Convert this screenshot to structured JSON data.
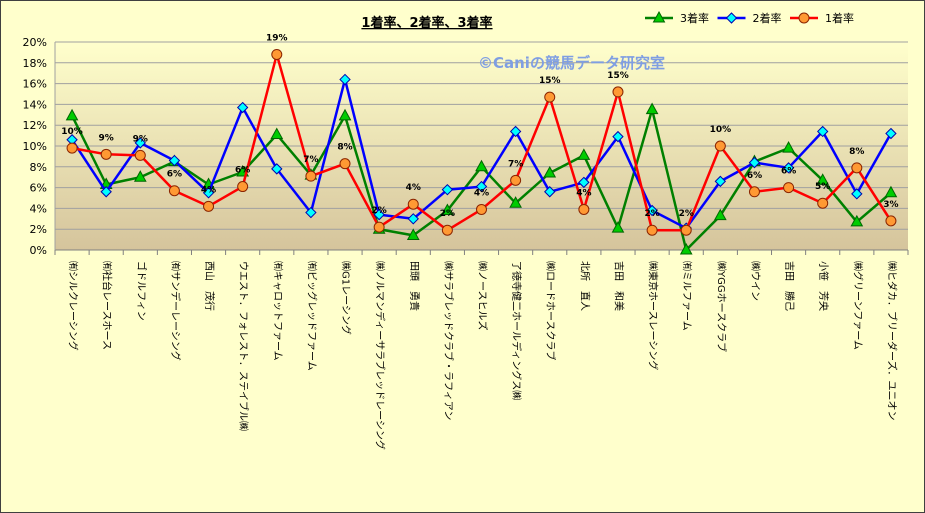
{
  "chart_data": {
    "type": "line",
    "title": "1着率、2着率、3着率",
    "watermark": "©Caniの競馬データ研究室",
    "ylim": [
      0,
      20
    ],
    "yticks": [
      {
        "value": 0,
        "label": "0%"
      },
      {
        "value": 2,
        "label": "2%"
      },
      {
        "value": 4,
        "label": "4%"
      },
      {
        "value": 6,
        "label": "6%"
      },
      {
        "value": 8,
        "label": "8%"
      },
      {
        "value": 10,
        "label": "10%"
      },
      {
        "value": 12,
        "label": "12%"
      },
      {
        "value": 14,
        "label": "14%"
      },
      {
        "value": 16,
        "label": "16%"
      },
      {
        "value": 18,
        "label": "18%"
      },
      {
        "value": 20,
        "label": "20%"
      }
    ],
    "grid": true,
    "legend": "top-right",
    "categories": [
      "㈲シルクレーシング",
      "㈲社台レースホース",
      "ゴドルフィン",
      "㈲サンデーレーシング",
      "西山　茂行",
      "ウエスト．フォレスト．ステイブル㈱",
      "㈲キャロットファーム",
      "㈲ビッグレッドファーム",
      "㈱G1レーシング",
      "㈱ノルマンディーサラブレッドレーシング",
      "田頭　勇貴",
      "㈱サラブレッドクラブ・ラフィアン",
      "㈱ノースヒルズ",
      "了徳寺健二ホールディングス㈱",
      "㈱ロードホースクラブ",
      "北所　直人",
      "吉田　和美",
      "㈱東京ホースレーシング",
      "㈲ミルファーム",
      "㈱YGGホースクラブ",
      "㈱ウイン",
      "吉田　勝己",
      "小笹　芳央",
      "㈱グリーンファーム",
      "㈱ヒダカ．ブリーダーズ．ユニオン"
    ],
    "series": [
      {
        "name": "3着率",
        "color": "#008000",
        "marker": "triangle",
        "marker_fill": "#00cc00",
        "marker_stroke": "#006600",
        "values": [
          12.9,
          6.3,
          7.0,
          8.5,
          6.3,
          7.5,
          11.1,
          7.2,
          12.9,
          2.0,
          1.4,
          3.8,
          8.0,
          4.5,
          7.4,
          9.1,
          2.1,
          13.5,
          0.0,
          3.3,
          8.5,
          9.8,
          6.7,
          2.7,
          5.5
        ]
      },
      {
        "name": "2着率",
        "color": "#0000ff",
        "marker": "diamond",
        "marker_fill": "#00ffff",
        "marker_stroke": "#0000b0",
        "values": [
          10.6,
          5.6,
          10.3,
          8.6,
          5.5,
          13.7,
          7.8,
          3.6,
          16.4,
          3.4,
          3.0,
          5.8,
          6.1,
          11.4,
          5.6,
          6.5,
          10.9,
          3.8,
          2.1,
          6.6,
          8.4,
          7.9,
          11.4,
          5.4,
          11.2
        ]
      },
      {
        "name": "1着率",
        "color": "#ff0000",
        "marker": "circle",
        "marker_fill": "#ff9933",
        "marker_stroke": "#8b2500",
        "values": [
          9.8,
          9.2,
          9.1,
          5.7,
          4.2,
          6.1,
          18.8,
          7.1,
          8.3,
          2.2,
          4.4,
          1.9,
          3.9,
          6.7,
          14.7,
          3.9,
          15.2,
          1.9,
          1.9,
          10.0,
          5.6,
          6.0,
          4.5,
          7.9,
          2.8
        ],
        "data_labels": [
          "10%",
          "9%",
          "9%",
          "6%",
          "4%",
          "6%",
          "19%",
          "7%",
          "8%",
          "2%",
          "4%",
          "2%",
          "4%",
          "7%",
          "15%",
          "4%",
          "15%",
          "2%",
          "2%",
          "10%",
          "6%",
          "6%",
          "5%",
          "8%",
          "3%"
        ]
      }
    ]
  }
}
